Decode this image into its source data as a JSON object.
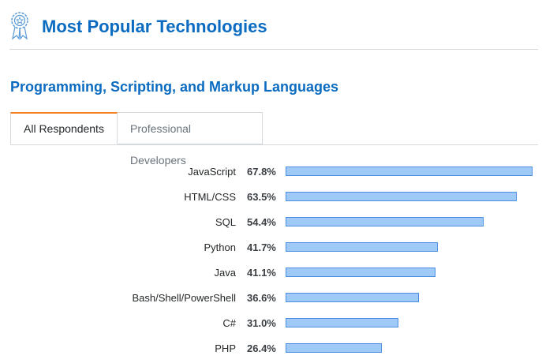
{
  "header": {
    "title": "Most Popular Technologies",
    "icon": "award-badge-icon",
    "accent": "#0a6bc1"
  },
  "section": {
    "title": "Programming, Scripting, and Markup Languages"
  },
  "tabs": [
    {
      "label": "All Respondents",
      "active": true
    },
    {
      "label": "Professional Developers",
      "active": false
    }
  ],
  "chart_data": {
    "type": "bar",
    "orientation": "horizontal",
    "categories": [
      "JavaScript",
      "HTML/CSS",
      "SQL",
      "Python",
      "Java",
      "Bash/Shell/PowerShell",
      "C#",
      "PHP"
    ],
    "values": [
      67.8,
      63.5,
      54.4,
      41.7,
      41.1,
      36.6,
      31.0,
      26.4
    ],
    "labels": [
      "67.8%",
      "63.5%",
      "54.4%",
      "41.7%",
      "41.1%",
      "36.6%",
      "31.0%",
      "26.4%"
    ],
    "max": 67.8,
    "bar_color": "#9fc9f7",
    "bar_border": "#4d8ee0"
  }
}
